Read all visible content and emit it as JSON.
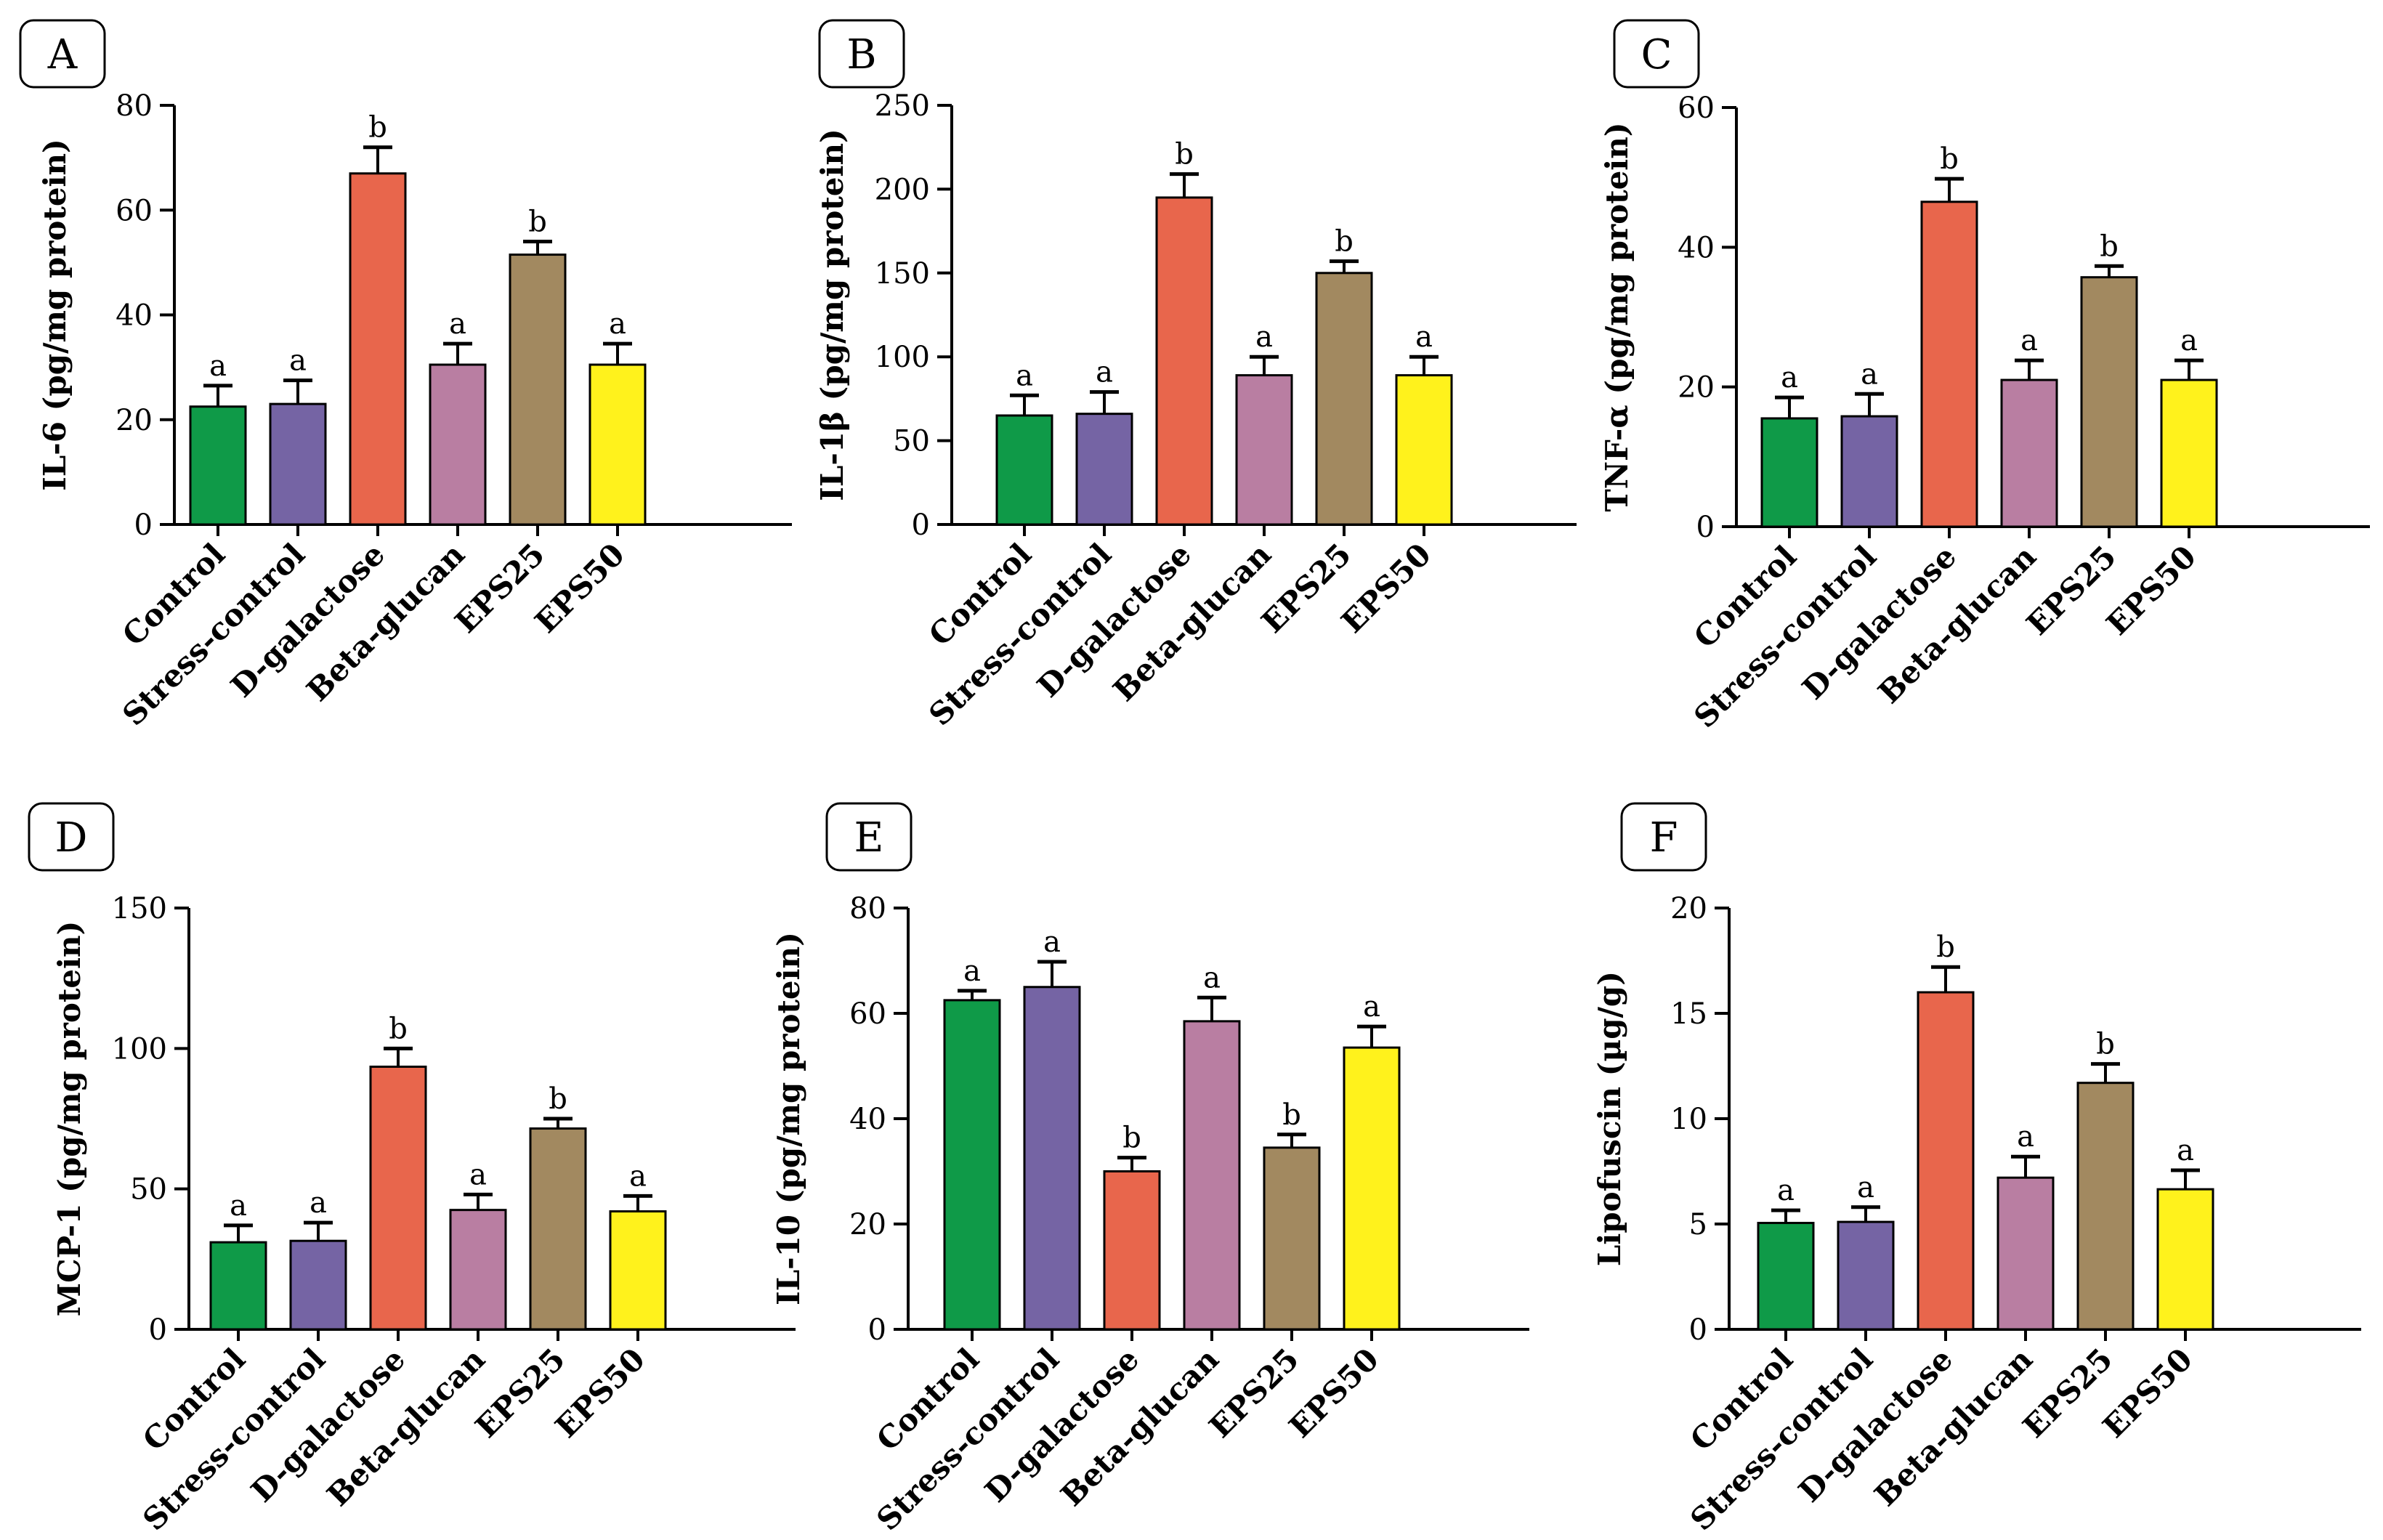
{
  "figure": {
    "colors": {
      "Control": "#0f9a48",
      "Stress-control": "#7564a4",
      "D-galactose": "#e8664c",
      "Beta-glucan": "#b97ea2",
      "EPS25": "#a28960",
      "EPS50": "#fff21c"
    }
  },
  "chart_data": [
    {
      "panel": "A",
      "type": "bar",
      "categories": [
        "Control",
        "Stress-control",
        "D-galactose",
        "Beta-glucan",
        "EPS25",
        "EPS50"
      ],
      "values": [
        22.5,
        23,
        67,
        30.5,
        51.5,
        30.5
      ],
      "errors": [
        4,
        4.5,
        5,
        4,
        2.5,
        4
      ],
      "significance": [
        "a",
        "a",
        "b",
        "a",
        "b",
        "a"
      ],
      "ylabel": "IL-6 (pg/mg protein)",
      "ylim": [
        0,
        80
      ],
      "yticks": [
        0,
        20,
        40,
        60,
        80
      ]
    },
    {
      "panel": "B",
      "type": "bar",
      "categories": [
        "Control",
        "Stress-control",
        "D-galactose",
        "Beta-glucan",
        "EPS25",
        "EPS50"
      ],
      "values": [
        65,
        66,
        195,
        89,
        150,
        89
      ],
      "errors": [
        12,
        13,
        14,
        11,
        7,
        11
      ],
      "significance": [
        "a",
        "a",
        "b",
        "a",
        "b",
        "a"
      ],
      "ylabel": "IL-1β (pg/mg protein)",
      "ylim": [
        0,
        250
      ],
      "yticks": [
        0,
        50,
        100,
        150,
        200,
        250
      ]
    },
    {
      "panel": "C",
      "type": "bar",
      "categories": [
        "Control",
        "Stress-control",
        "D-galactose",
        "Beta-glucan",
        "EPS25",
        "EPS50"
      ],
      "values": [
        15.5,
        15.8,
        46.5,
        21,
        35.7,
        21
      ],
      "errors": [
        3,
        3.2,
        3.3,
        2.8,
        1.6,
        2.8
      ],
      "significance": [
        "a",
        "a",
        "b",
        "a",
        "b",
        "a"
      ],
      "ylabel": "TNF-α (pg/mg protein)",
      "ylim": [
        0,
        60
      ],
      "yticks": [
        0,
        20,
        40,
        60
      ]
    },
    {
      "panel": "D",
      "type": "bar",
      "categories": [
        "Control",
        "Stress-control",
        "D-galactose",
        "Beta-glucan",
        "EPS25",
        "EPS50"
      ],
      "values": [
        31,
        31.5,
        93.5,
        42.5,
        71.5,
        42
      ],
      "errors": [
        6,
        6.5,
        6.5,
        5.5,
        3.5,
        5.5
      ],
      "significance": [
        "a",
        "a",
        "b",
        "a",
        "b",
        "a"
      ],
      "ylabel": "MCP-1 (pg/mg protein)",
      "ylim": [
        0,
        150
      ],
      "yticks": [
        0,
        50,
        100,
        150
      ]
    },
    {
      "panel": "E",
      "type": "bar",
      "categories": [
        "Control",
        "Stress-control",
        "D-galactose",
        "Beta-glucan",
        "EPS25",
        "EPS50"
      ],
      "values": [
        62.5,
        65,
        30,
        58.5,
        34.5,
        53.5
      ],
      "errors": [
        1.8,
        4.8,
        2.6,
        4.5,
        2.5,
        4
      ],
      "significance": [
        "a",
        "a",
        "b",
        "a",
        "b",
        "a"
      ],
      "ylabel": "IL-10 (pg/mg protein)",
      "ylim": [
        0,
        80
      ],
      "yticks": [
        0,
        20,
        40,
        60,
        80
      ]
    },
    {
      "panel": "F",
      "type": "bar",
      "categories": [
        "Control",
        "Stress-control",
        "D-galactose",
        "Beta-glucan",
        "EPS25",
        "EPS50"
      ],
      "values": [
        5.05,
        5.1,
        16,
        7.2,
        11.7,
        6.65
      ],
      "errors": [
        0.6,
        0.7,
        1.2,
        1.0,
        0.9,
        0.9
      ],
      "significance": [
        "a",
        "a",
        "b",
        "a",
        "b",
        "a"
      ],
      "ylabel": "Lipofuscin (µg/g)",
      "ylim": [
        0,
        20
      ],
      "yticks": [
        0,
        5,
        10,
        15,
        20
      ]
    }
  ]
}
